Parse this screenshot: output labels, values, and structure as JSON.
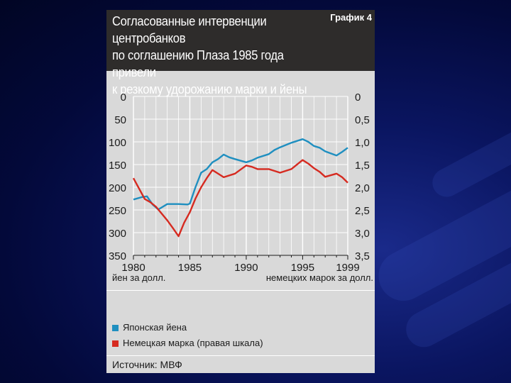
{
  "header": {
    "title_lines": [
      "Согласованные интервенции центробанков",
      "по соглашению Плаза 1985 года привели",
      "к резкому удорожанию марки и йены"
    ],
    "tag": "График 4"
  },
  "colors": {
    "background": "#0a1560",
    "header_bg": "#2e2c2b",
    "card_bg": "#d9d9d9",
    "yen": "#1f8fc0",
    "mark": "#d62a20"
  },
  "legend": {
    "yen_label": "Японская йена",
    "mark_label": "Немецкая марка (правая шкала)"
  },
  "source": "Источник: МВФ",
  "chart_data": {
    "type": "line",
    "title": "Согласованные интервенции центробанков по соглашению Плаза 1985 года привели к резкому удорожанию марки и йены",
    "x_ticks": [
      "1980",
      "1985",
      "1990",
      "1995",
      "1999"
    ],
    "xlim": [
      1980,
      1999
    ],
    "left_axis": {
      "label": "йен за долл.",
      "ticks": [
        "0",
        "50",
        "100",
        "150",
        "200",
        "250",
        "300",
        "350"
      ],
      "ylim": [
        0,
        350
      ],
      "inverted": true
    },
    "right_axis": {
      "label": "немецких марок за долл.",
      "ticks": [
        "0",
        "0,5",
        "1,0",
        "1,5",
        "2,0",
        "2,5",
        "3,0",
        "3,5"
      ],
      "ylim": [
        0,
        3.5
      ],
      "inverted": true
    },
    "grid": true,
    "series": [
      {
        "name": "Японская йена",
        "axis": "left",
        "color": "#1f8fc0",
        "points": [
          [
            1980.0,
            227
          ],
          [
            1980.7,
            222
          ],
          [
            1981.2,
            220
          ],
          [
            1981.7,
            238
          ],
          [
            1982.2,
            249
          ],
          [
            1983.0,
            237
          ],
          [
            1984.0,
            237
          ],
          [
            1984.8,
            238
          ],
          [
            1985.0,
            236
          ],
          [
            1985.5,
            200
          ],
          [
            1986.0,
            168
          ],
          [
            1986.5,
            160
          ],
          [
            1987.0,
            145
          ],
          [
            1987.5,
            138
          ],
          [
            1988.0,
            128
          ],
          [
            1988.5,
            134
          ],
          [
            1989.0,
            138
          ],
          [
            1990.0,
            145
          ],
          [
            1990.5,
            141
          ],
          [
            1991.0,
            135
          ],
          [
            1992.0,
            127
          ],
          [
            1992.5,
            118
          ],
          [
            1993.0,
            112
          ],
          [
            1994.0,
            102
          ],
          [
            1995.0,
            94
          ],
          [
            1995.5,
            100
          ],
          [
            1996.0,
            109
          ],
          [
            1996.5,
            113
          ],
          [
            1997.0,
            121
          ],
          [
            1998.0,
            130
          ],
          [
            1998.5,
            122
          ],
          [
            1999.0,
            113
          ]
        ]
      },
      {
        "name": "Немецкая марка (правая шкала)",
        "axis": "right",
        "color": "#d62a20",
        "points": [
          [
            1980.0,
            1.8
          ],
          [
            1981.0,
            2.26
          ],
          [
            1981.5,
            2.33
          ],
          [
            1982.0,
            2.43
          ],
          [
            1983.0,
            2.73
          ],
          [
            1983.5,
            2.9
          ],
          [
            1984.0,
            3.08
          ],
          [
            1984.5,
            2.78
          ],
          [
            1985.0,
            2.55
          ],
          [
            1985.5,
            2.25
          ],
          [
            1986.0,
            2.0
          ],
          [
            1986.5,
            1.8
          ],
          [
            1987.0,
            1.62
          ],
          [
            1987.5,
            1.7
          ],
          [
            1988.0,
            1.78
          ],
          [
            1989.0,
            1.7
          ],
          [
            1990.0,
            1.52
          ],
          [
            1990.5,
            1.55
          ],
          [
            1991.0,
            1.6
          ],
          [
            1992.0,
            1.6
          ],
          [
            1993.0,
            1.68
          ],
          [
            1994.0,
            1.6
          ],
          [
            1995.0,
            1.4
          ],
          [
            1995.5,
            1.48
          ],
          [
            1996.0,
            1.58
          ],
          [
            1996.5,
            1.66
          ],
          [
            1997.0,
            1.77
          ],
          [
            1998.0,
            1.7
          ],
          [
            1998.5,
            1.78
          ],
          [
            1999.0,
            1.9
          ]
        ]
      }
    ]
  }
}
